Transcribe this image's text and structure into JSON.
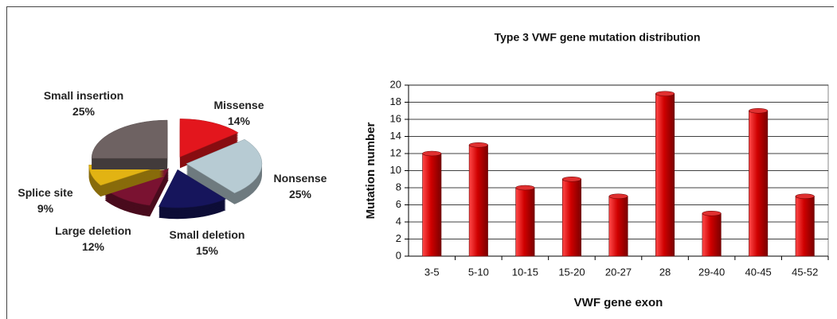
{
  "chart_data": [
    {
      "type": "pie",
      "categories": [
        "Missense",
        "Nonsense",
        "Small deletion",
        "Large deletion",
        "Splice site",
        "Small insertion"
      ],
      "values": [
        14,
        25,
        15,
        12,
        9,
        25
      ],
      "value_labels": [
        "14%",
        "25%",
        "15%",
        "12%",
        "9%",
        "25%"
      ],
      "colors": [
        "#e3161d",
        "#b7cbd3",
        "#16155c",
        "#7a1231",
        "#e2b313",
        "#6e6262"
      ]
    },
    {
      "type": "bar",
      "title": "Type 3  VWF gene mutation distribution",
      "x_label": "VWF gene exon",
      "y_label": "Mutation number",
      "categories": [
        "3-5",
        "5-10",
        "10-15",
        "15-20",
        "20-27",
        "28",
        "29-40",
        "40-45",
        "45-52"
      ],
      "values": [
        12,
        13,
        8,
        9,
        7,
        19,
        5,
        17,
        7
      ],
      "color": "#c80000",
      "ylim": [
        0,
        20
      ],
      "yticks": [
        0,
        2,
        4,
        6,
        8,
        10,
        12,
        14,
        16,
        18,
        20
      ],
      "grid": true
    }
  ]
}
